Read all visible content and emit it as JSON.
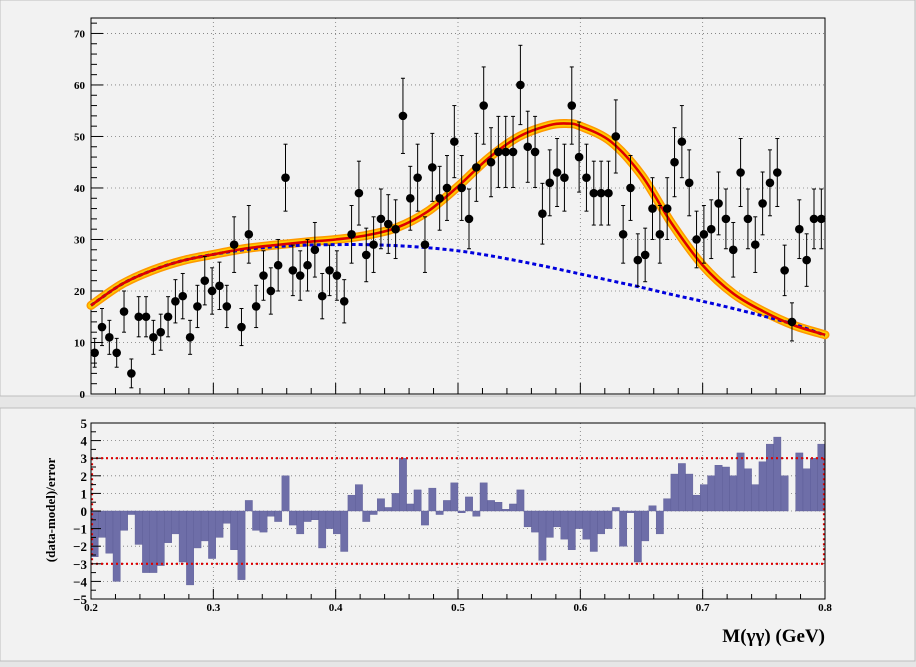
{
  "chart_data": [
    {
      "type": "scatter",
      "xlim": [
        0.2,
        0.8
      ],
      "ylim": [
        0,
        73
      ],
      "grid": true,
      "y_ticks": [
        0,
        10,
        20,
        30,
        40,
        50,
        60,
        70
      ],
      "y_tick_labels": [
        "0",
        "10",
        "20",
        "30",
        "40",
        "50",
        "60",
        "70"
      ],
      "colors": {
        "data": "#000000",
        "model": "#dd0000",
        "background_model": "#0000dd",
        "band": "#ffcc00",
        "band_edge": "#ff9900"
      },
      "series": [
        {
          "kind": "data_points",
          "x": [
            0.203,
            0.209,
            0.215,
            0.221,
            0.227,
            0.233,
            0.239,
            0.245,
            0.251,
            0.257,
            0.263,
            0.269,
            0.275,
            0.281,
            0.287,
            0.293,
            0.299,
            0.305,
            0.311,
            0.317,
            0.323,
            0.329,
            0.335,
            0.341,
            0.347,
            0.353,
            0.359,
            0.365,
            0.371,
            0.377,
            0.383,
            0.389,
            0.395,
            0.401,
            0.407,
            0.413,
            0.419,
            0.425,
            0.431,
            0.437,
            0.443,
            0.449,
            0.455,
            0.461,
            0.467,
            0.473,
            0.479,
            0.485,
            0.491,
            0.497,
            0.503,
            0.509,
            0.515,
            0.521,
            0.527,
            0.533,
            0.539,
            0.545,
            0.551,
            0.557,
            0.563,
            0.569,
            0.575,
            0.581,
            0.587,
            0.593,
            0.599,
            0.605,
            0.611,
            0.617,
            0.623,
            0.629,
            0.635,
            0.641,
            0.647,
            0.653,
            0.659,
            0.665,
            0.671,
            0.677,
            0.683,
            0.689,
            0.695,
            0.701,
            0.707,
            0.713,
            0.719,
            0.725,
            0.731,
            0.737,
            0.743,
            0.749,
            0.755,
            0.761,
            0.767,
            0.773,
            0.779,
            0.785,
            0.791,
            0.797
          ],
          "y": [
            8,
            13,
            11,
            8,
            16,
            4,
            15,
            15,
            11,
            12,
            15,
            18,
            19,
            11,
            17,
            22,
            20,
            21,
            17,
            29,
            13,
            31,
            17,
            23,
            20,
            25,
            42,
            24,
            23,
            25,
            28,
            19,
            24,
            23,
            18,
            31,
            39,
            27,
            29,
            34,
            33,
            32,
            54,
            38,
            42,
            29,
            44,
            38,
            40,
            49,
            40,
            34,
            44,
            56,
            45,
            47,
            47,
            47,
            60,
            48,
            47,
            35,
            41,
            43,
            42,
            56,
            46,
            42,
            39,
            39,
            39,
            50,
            31,
            40,
            26,
            27,
            36,
            31,
            36,
            45,
            49,
            41,
            30,
            31,
            32,
            37,
            34,
            28,
            43,
            34,
            29,
            37,
            41,
            43,
            24,
            14,
            32,
            26,
            34,
            34
          ],
          "err": [
            2.8,
            3.6,
            3.3,
            2.8,
            4.0,
            2.8,
            3.9,
            3.9,
            3.3,
            3.5,
            3.9,
            4.2,
            4.4,
            3.3,
            4.1,
            4.7,
            4.5,
            4.6,
            4.1,
            5.4,
            3.6,
            5.6,
            4.1,
            4.8,
            4.5,
            5.0,
            6.5,
            4.9,
            4.8,
            5.0,
            5.3,
            4.4,
            4.9,
            4.8,
            4.2,
            5.6,
            6.2,
            5.2,
            5.4,
            5.8,
            5.7,
            5.7,
            7.3,
            6.2,
            6.5,
            5.4,
            6.6,
            6.2,
            6.3,
            7.0,
            6.3,
            5.8,
            6.6,
            7.5,
            6.7,
            6.9,
            6.9,
            6.9,
            7.7,
            6.9,
            6.9,
            5.9,
            6.4,
            6.6,
            6.5,
            7.5,
            6.8,
            6.5,
            6.2,
            6.2,
            6.2,
            7.1,
            5.6,
            6.3,
            5.1,
            5.2,
            6.0,
            5.6,
            6.0,
            6.7,
            7.0,
            6.4,
            5.5,
            5.6,
            5.7,
            6.1,
            5.8,
            5.3,
            6.6,
            5.8,
            5.4,
            6.1,
            6.4,
            6.6,
            4.9,
            3.7,
            5.7,
            5.1,
            5.8,
            5.8
          ]
        },
        {
          "kind": "total_model",
          "x": [
            0.2,
            0.225,
            0.25,
            0.275,
            0.3,
            0.325,
            0.35,
            0.375,
            0.4,
            0.425,
            0.45,
            0.475,
            0.5,
            0.525,
            0.55,
            0.575,
            0.59,
            0.6,
            0.625,
            0.65,
            0.675,
            0.7,
            0.725,
            0.75,
            0.775,
            0.8
          ],
          "y": [
            17.2,
            21.3,
            24.0,
            25.9,
            27.1,
            28.2,
            28.9,
            29.5,
            30.0,
            30.8,
            32.3,
            35.4,
            40.3,
            45.8,
            50.0,
            52.2,
            52.5,
            52.0,
            49.0,
            42.5,
            33.0,
            25.0,
            19.5,
            16.0,
            13.3,
            11.5
          ]
        },
        {
          "kind": "background_model",
          "x": [
            0.2,
            0.225,
            0.25,
            0.275,
            0.3,
            0.325,
            0.35,
            0.375,
            0.4,
            0.425,
            0.45,
            0.475,
            0.5,
            0.525,
            0.55,
            0.575,
            0.6,
            0.625,
            0.65,
            0.675,
            0.7,
            0.725,
            0.75,
            0.775,
            0.8
          ],
          "y": [
            17.2,
            21.3,
            24.0,
            25.9,
            27.1,
            28.0,
            28.6,
            28.9,
            29.0,
            29.0,
            28.8,
            28.4,
            27.8,
            26.9,
            25.8,
            24.6,
            23.3,
            22.0,
            20.7,
            19.3,
            18.0,
            16.6,
            15.1,
            13.5,
            11.4
          ]
        }
      ]
    },
    {
      "type": "bar",
      "title": "",
      "ylabel": "(data-model)/error",
      "xlabel": "M(γγ) (GeV)",
      "xlim": [
        0.2,
        0.8
      ],
      "ylim": [
        -5,
        5
      ],
      "grid": true,
      "reference_lines": [
        3,
        -3
      ],
      "x_ticks": [
        0.2,
        0.3,
        0.4,
        0.5,
        0.6,
        0.7,
        0.8
      ],
      "x_tick_labels": [
        "0.2",
        "0.3",
        "0.4",
        "0.5",
        "0.6",
        "0.7",
        "0.8"
      ],
      "y_ticks": [
        -5,
        -4,
        -3,
        -2,
        -1,
        0,
        1,
        2,
        3,
        4,
        5
      ],
      "y_tick_labels": [
        "−5",
        "−4",
        "−3",
        "−2",
        "−1",
        "0",
        "1",
        "2",
        "3",
        "4",
        "5"
      ],
      "colors": {
        "bar": "#6e6ea8",
        "bar_edge": "#5a5a95",
        "reference": "#dd0000"
      },
      "bin_width": 0.006,
      "x": [
        0.203,
        0.209,
        0.215,
        0.221,
        0.227,
        0.233,
        0.239,
        0.245,
        0.251,
        0.257,
        0.263,
        0.269,
        0.275,
        0.281,
        0.287,
        0.293,
        0.299,
        0.305,
        0.311,
        0.317,
        0.323,
        0.329,
        0.335,
        0.341,
        0.347,
        0.353,
        0.359,
        0.365,
        0.371,
        0.377,
        0.383,
        0.389,
        0.395,
        0.401,
        0.407,
        0.413,
        0.419,
        0.425,
        0.431,
        0.437,
        0.443,
        0.449,
        0.455,
        0.461,
        0.467,
        0.473,
        0.479,
        0.485,
        0.491,
        0.497,
        0.503,
        0.509,
        0.515,
        0.521,
        0.527,
        0.533,
        0.539,
        0.545,
        0.551,
        0.557,
        0.563,
        0.569,
        0.575,
        0.581,
        0.587,
        0.593,
        0.599,
        0.605,
        0.611,
        0.617,
        0.623,
        0.629,
        0.635,
        0.641,
        0.647,
        0.653,
        0.659,
        0.665,
        0.671,
        0.677,
        0.683,
        0.689,
        0.695,
        0.701,
        0.707,
        0.713,
        0.719,
        0.725,
        0.731,
        0.737,
        0.743,
        0.749,
        0.755,
        0.761,
        0.767,
        0.773,
        0.779,
        0.785,
        0.791,
        0.797
      ],
      "values": [
        -2.6,
        -1.5,
        -2.4,
        -4.0,
        -1.1,
        -0.2,
        -1.9,
        -3.5,
        -3.5,
        -3.1,
        -1.8,
        -1.3,
        -2.9,
        -4.2,
        -2.1,
        -1.7,
        -2.7,
        -1.5,
        -0.7,
        -2.2,
        -3.9,
        0.6,
        -1.1,
        -1.2,
        -0.3,
        -0.6,
        2.0,
        -0.8,
        -1.3,
        -0.6,
        -0.5,
        -2.1,
        -1.0,
        -1.3,
        -2.3,
        0.9,
        1.5,
        -0.6,
        -0.2,
        0.7,
        0.2,
        1.0,
        3.0,
        0.4,
        1.2,
        -0.8,
        1.3,
        -0.2,
        0.6,
        1.6,
        -0.1,
        0.8,
        -0.3,
        1.6,
        0.6,
        0.5,
        0.1,
        0.4,
        1.2,
        -0.9,
        -1.2,
        -2.8,
        -1.5,
        -0.9,
        -1.6,
        -2.2,
        -1.0,
        -1.6,
        -2.3,
        -1.3,
        -1.0,
        0.2,
        -2.0,
        -0.1,
        -2.9,
        -1.7,
        0.3,
        -1.3,
        0.7,
        2.1,
        2.7,
        2.1,
        0.9,
        1.5,
        2.0,
        2.6,
        2.5,
        2.0,
        3.3,
        2.4,
        1.5,
        2.8,
        3.8,
        4.2,
        2.0,
        0.0,
        3.3,
        2.4,
        3.0,
        3.8
      ]
    }
  ]
}
